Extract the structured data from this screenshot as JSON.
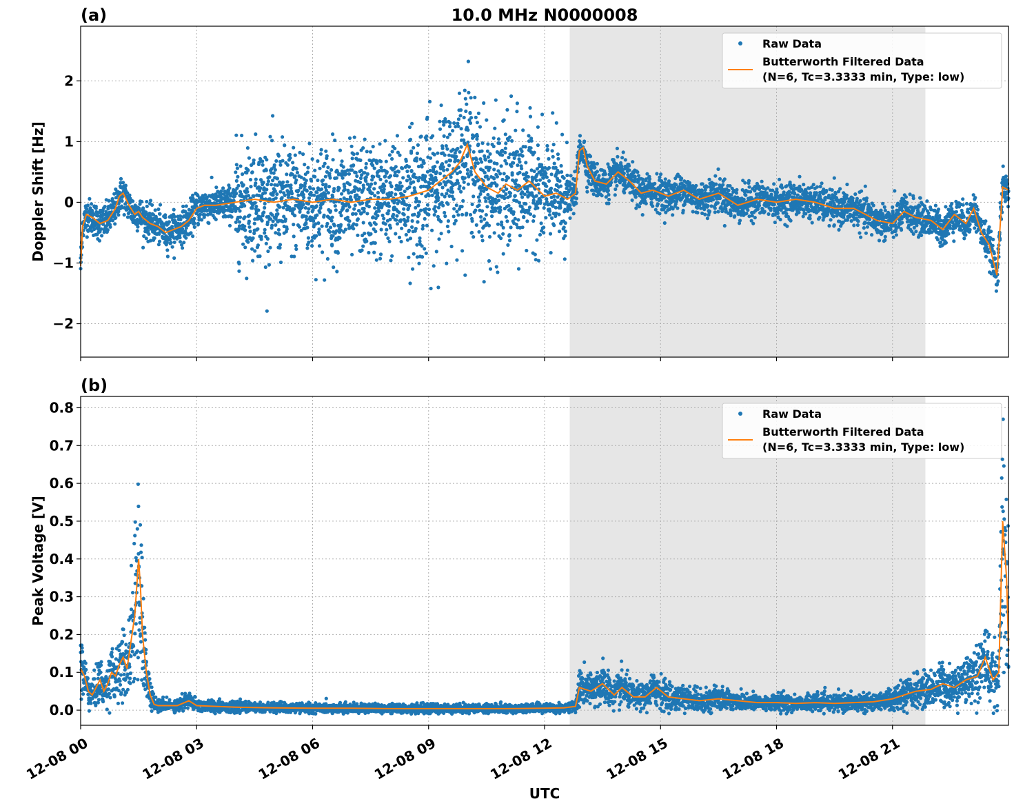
{
  "figure": {
    "title": "10.0 MHz N0000008",
    "xlabel": "UTC",
    "x_ticks": [
      "12-08 00",
      "12-08 03",
      "12-08 06",
      "12-08 09",
      "12-08 12",
      "12-08 15",
      "12-08 18",
      "12-08 21"
    ],
    "x_tick_hours": [
      0,
      3,
      6,
      9,
      12,
      15,
      18,
      21
    ],
    "x_range_hours": [
      0,
      24
    ],
    "shaded_span_hours": [
      12.65,
      21.85
    ],
    "colors": {
      "raw": "#1f77b4",
      "filtered": "#ff7f0e",
      "shade": "#e6e6e6",
      "grid": "#b0b0b0"
    }
  },
  "chart_data": [
    {
      "type": "scatter",
      "panel_label": "(a)",
      "title": "10.0 MHz N0000008",
      "xlabel": "",
      "ylabel": "Doppler Shift [Hz]",
      "ylim": [
        -2.55,
        2.9
      ],
      "y_ticks": [
        -2,
        -1,
        0,
        1,
        2
      ],
      "y_tick_labels": [
        "−2",
        "−1",
        "0",
        "1",
        "2"
      ],
      "grid": true,
      "legend_placement": "top-right",
      "legend": {
        "raw": "Raw Data",
        "filtered_line1": "Butterworth Filtered Data",
        "filtered_line2": "(N=6, Tc=3.3333 min, Type: low)"
      },
      "series": [
        {
          "name": "Butterworth Filtered Data",
          "x": [
            0,
            0.05,
            0.15,
            0.3,
            0.5,
            0.7,
            0.9,
            1.0,
            1.1,
            1.25,
            1.4,
            1.5,
            1.6,
            1.8,
            2.0,
            2.2,
            2.4,
            2.6,
            2.8,
            3.0,
            3.2,
            3.5,
            4.0,
            4.5,
            5.0,
            5.5,
            6.0,
            6.5,
            7.0,
            7.5,
            8.0,
            8.5,
            9.0,
            9.3,
            9.6,
            9.8,
            10.0,
            10.2,
            10.5,
            10.8,
            11.0,
            11.3,
            11.6,
            12.0,
            12.3,
            12.6,
            12.8,
            12.9,
            13.0,
            13.1,
            13.3,
            13.6,
            13.9,
            14.2,
            14.5,
            14.8,
            15.2,
            15.6,
            16.0,
            16.5,
            17.0,
            17.5,
            18.0,
            18.5,
            19.0,
            19.5,
            20.0,
            20.3,
            20.6,
            21.0,
            21.3,
            21.6,
            22.0,
            22.3,
            22.6,
            22.9,
            23.1,
            23.3,
            23.5,
            23.7,
            23.85,
            24.0
          ],
          "y": [
            -1.05,
            -0.4,
            -0.2,
            -0.25,
            -0.35,
            -0.3,
            -0.1,
            0.1,
            0.15,
            -0.05,
            -0.2,
            -0.15,
            -0.25,
            -0.35,
            -0.4,
            -0.5,
            -0.45,
            -0.4,
            -0.3,
            -0.1,
            -0.05,
            -0.05,
            0.0,
            0.05,
            0.0,
            0.05,
            0.0,
            0.05,
            0.0,
            0.05,
            0.05,
            0.1,
            0.2,
            0.35,
            0.5,
            0.65,
            0.95,
            0.5,
            0.25,
            0.15,
            0.3,
            0.2,
            0.35,
            0.1,
            0.15,
            0.05,
            0.15,
            0.85,
            0.9,
            0.6,
            0.35,
            0.3,
            0.5,
            0.35,
            0.15,
            0.2,
            0.1,
            0.2,
            0.05,
            0.15,
            -0.05,
            0.05,
            0.0,
            0.05,
            0.0,
            -0.1,
            -0.1,
            -0.2,
            -0.3,
            -0.35,
            -0.15,
            -0.25,
            -0.3,
            -0.45,
            -0.2,
            -0.35,
            -0.1,
            -0.5,
            -0.7,
            -1.2,
            0.25,
            0.2
          ]
        }
      ]
    },
    {
      "type": "scatter",
      "panel_label": "(b)",
      "xlabel": "UTC",
      "ylabel": "Peak Voltage [V]",
      "ylim": [
        -0.04,
        0.83
      ],
      "y_ticks": [
        0.0,
        0.1,
        0.2,
        0.3,
        0.4,
        0.5,
        0.6,
        0.7,
        0.8
      ],
      "y_tick_labels": [
        "0.0",
        "0.1",
        "0.2",
        "0.3",
        "0.4",
        "0.5",
        "0.6",
        "0.7",
        "0.8"
      ],
      "grid": true,
      "legend_placement": "top-right",
      "legend": {
        "raw": "Raw Data",
        "filtered_line1": "Butterworth Filtered Data",
        "filtered_line2": "(N=6, Tc=3.3333 min, Type: low)"
      },
      "series": [
        {
          "name": "Butterworth Filtered Data",
          "x": [
            0,
            0.1,
            0.2,
            0.3,
            0.4,
            0.5,
            0.6,
            0.7,
            0.8,
            0.9,
            1.0,
            1.1,
            1.2,
            1.3,
            1.4,
            1.5,
            1.55,
            1.6,
            1.7,
            1.8,
            1.9,
            2.0,
            2.5,
            2.8,
            3.0,
            3.5,
            4.0,
            5.0,
            6.0,
            7.0,
            8.0,
            9.0,
            10.0,
            11.0,
            12.0,
            12.5,
            12.8,
            12.9,
            13.2,
            13.5,
            13.8,
            14.0,
            14.3,
            14.6,
            14.9,
            15.2,
            15.6,
            16.0,
            16.5,
            17.0,
            17.5,
            18.0,
            18.5,
            19.0,
            19.5,
            20.0,
            20.5,
            21.0,
            21.3,
            21.6,
            22.0,
            22.3,
            22.6,
            22.9,
            23.2,
            23.4,
            23.6,
            23.75,
            23.85,
            23.95,
            24.0
          ],
          "y": [
            0.11,
            0.09,
            0.05,
            0.04,
            0.06,
            0.08,
            0.05,
            0.07,
            0.1,
            0.09,
            0.12,
            0.14,
            0.11,
            0.18,
            0.25,
            0.4,
            0.32,
            0.2,
            0.1,
            0.04,
            0.015,
            0.012,
            0.012,
            0.025,
            0.012,
            0.01,
            0.008,
            0.006,
            0.005,
            0.005,
            0.004,
            0.004,
            0.004,
            0.004,
            0.005,
            0.006,
            0.01,
            0.06,
            0.05,
            0.07,
            0.04,
            0.06,
            0.035,
            0.035,
            0.06,
            0.035,
            0.03,
            0.025,
            0.03,
            0.025,
            0.02,
            0.02,
            0.018,
            0.02,
            0.018,
            0.02,
            0.022,
            0.03,
            0.04,
            0.05,
            0.055,
            0.07,
            0.06,
            0.08,
            0.09,
            0.14,
            0.08,
            0.1,
            0.5,
            0.35,
            0.17
          ]
        }
      ]
    }
  ]
}
